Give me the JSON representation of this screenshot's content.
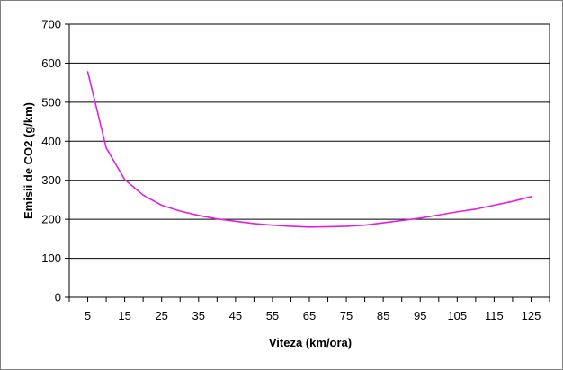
{
  "chart_data": {
    "type": "line",
    "title": "",
    "xlabel": "Viteza (km/ora)",
    "ylabel": "Emisii de CO2 (g/km)",
    "xlim": [
      0,
      130
    ],
    "ylim": [
      0,
      700
    ],
    "x_ticks": [
      5,
      15,
      25,
      35,
      45,
      55,
      65,
      75,
      85,
      95,
      105,
      115,
      125
    ],
    "y_ticks": [
      0,
      100,
      200,
      300,
      400,
      500,
      600,
      700
    ],
    "grid": "horizontal",
    "legend": "none",
    "series": [
      {
        "color": "#e020e0",
        "x": [
          5,
          10,
          15,
          20,
          25,
          30,
          35,
          40,
          45,
          50,
          55,
          60,
          65,
          70,
          75,
          80,
          85,
          90,
          95,
          100,
          105,
          110,
          115,
          120,
          125
        ],
        "y": [
          578,
          383,
          302,
          262,
          236,
          221,
          210,
          201,
          195,
          189,
          185,
          182,
          180,
          181,
          182,
          185,
          191,
          197,
          203,
          211,
          219,
          226,
          236,
          246,
          258
        ]
      }
    ]
  }
}
